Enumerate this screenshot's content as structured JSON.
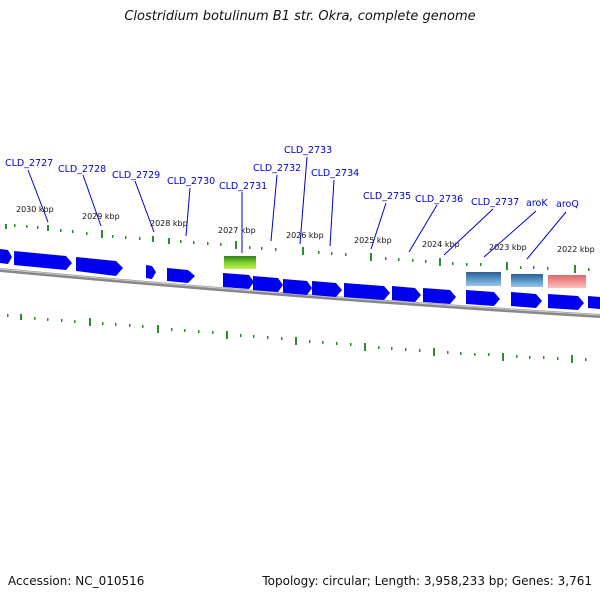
{
  "title": "Clostridium botulinum B1 str. Okra, complete genome",
  "footer": {
    "accession": "Accession: NC_010516",
    "summary": "Topology: circular; Length: 3,958,233 bp; Genes: 3,761"
  },
  "scale_labels": [
    {
      "text": "2030 kbp"
    },
    {
      "text": "2029 kbp"
    },
    {
      "text": "2028 kbp"
    },
    {
      "text": "2027 kbp"
    },
    {
      "text": "2026 kbp"
    },
    {
      "text": "2025 kbp"
    },
    {
      "text": "2024 kbp"
    },
    {
      "text": "2023 kbp"
    },
    {
      "text": "2022 kbp"
    }
  ],
  "gene_labels": [
    {
      "text": "CLD_2727"
    },
    {
      "text": "CLD_2728"
    },
    {
      "text": "CLD_2729"
    },
    {
      "text": "CLD_2730"
    },
    {
      "text": "CLD_2731"
    },
    {
      "text": "CLD_2732"
    },
    {
      "text": "CLD_2733"
    },
    {
      "text": "CLD_2734"
    },
    {
      "text": "CLD_2735"
    },
    {
      "text": "CLD_2736"
    },
    {
      "text": "CLD_2737"
    },
    {
      "text": "aroK"
    },
    {
      "text": "aroQ"
    }
  ],
  "colors": {
    "cds": "#0000ee",
    "backbone": "#888888",
    "tick": "#2e8b2e",
    "gene_label": "#0000cc",
    "feature_green": "#4caf1a",
    "feature_steel": "#4a7fb0",
    "feature_pink": "#f08a8a"
  }
}
